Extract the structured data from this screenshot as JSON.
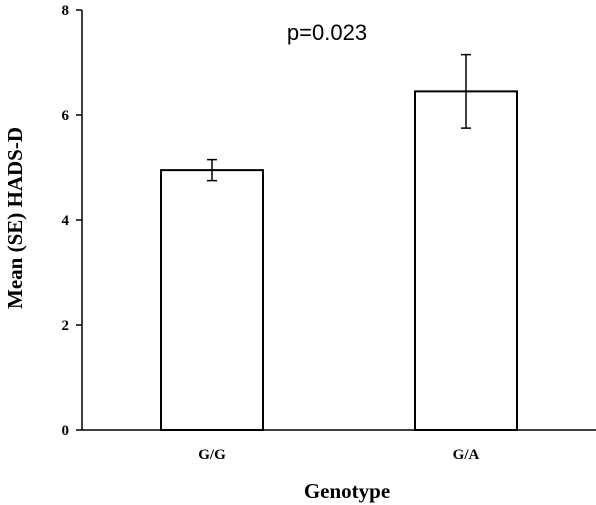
{
  "chart_data": {
    "type": "bar",
    "categories": [
      "G/G",
      "G/A"
    ],
    "values": [
      4.95,
      6.45
    ],
    "errors": [
      0.2,
      0.7
    ],
    "xlabel": "Genotype",
    "ylabel": "Mean (SE) HADS-D",
    "ylim": [
      0,
      8
    ],
    "yticks": [
      "0",
      "2",
      "4",
      "6",
      "8"
    ],
    "annotation": "p=0.023",
    "grid": false,
    "legend": "none",
    "bar_fill": "#ffffff",
    "bar_stroke": "#000000"
  }
}
